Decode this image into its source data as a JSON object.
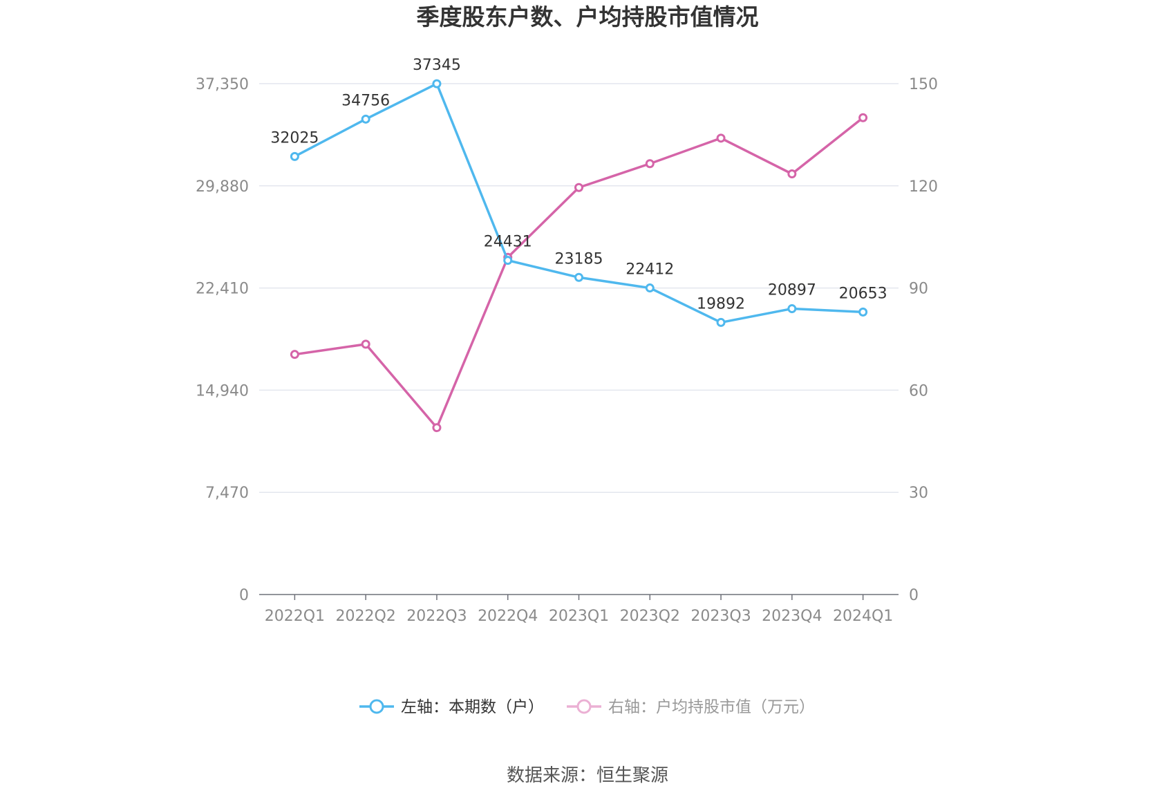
{
  "chart_data": {
    "type": "line",
    "title": "季度股东户数、户均持股市值情况",
    "categories": [
      "2022Q1",
      "2022Q2",
      "2022Q3",
      "2022Q4",
      "2023Q1",
      "2023Q2",
      "2023Q3",
      "2023Q4",
      "2024Q1"
    ],
    "y_left": {
      "ticks": [
        "0",
        "7,470",
        "14,940",
        "22,410",
        "29,880",
        "37,350"
      ],
      "range": [
        0,
        37350
      ]
    },
    "y_right": {
      "ticks": [
        "0",
        "30",
        "60",
        "90",
        "120",
        "150"
      ],
      "range": [
        0,
        150
      ]
    },
    "series": [
      {
        "name": "左轴：本期数（户）",
        "axis": "left",
        "color": "#4fb8ee",
        "values": [
          32025,
          34756,
          37345,
          24431,
          23185,
          22412,
          19892,
          20897,
          20653
        ],
        "labels": [
          "32025",
          "34756",
          "37345",
          "24431",
          "23185",
          "22412",
          "19892",
          "20897",
          "20653"
        ]
      },
      {
        "name": "右轴：户均持股市值（万元）",
        "axis": "right",
        "color": "#d564a8",
        "values": [
          70.5,
          73.5,
          49.0,
          99.0,
          119.5,
          126.5,
          134.0,
          123.5,
          140.0
        ]
      }
    ],
    "grid": true,
    "legend_position": "bottom"
  },
  "source": "数据来源：恒生聚源"
}
